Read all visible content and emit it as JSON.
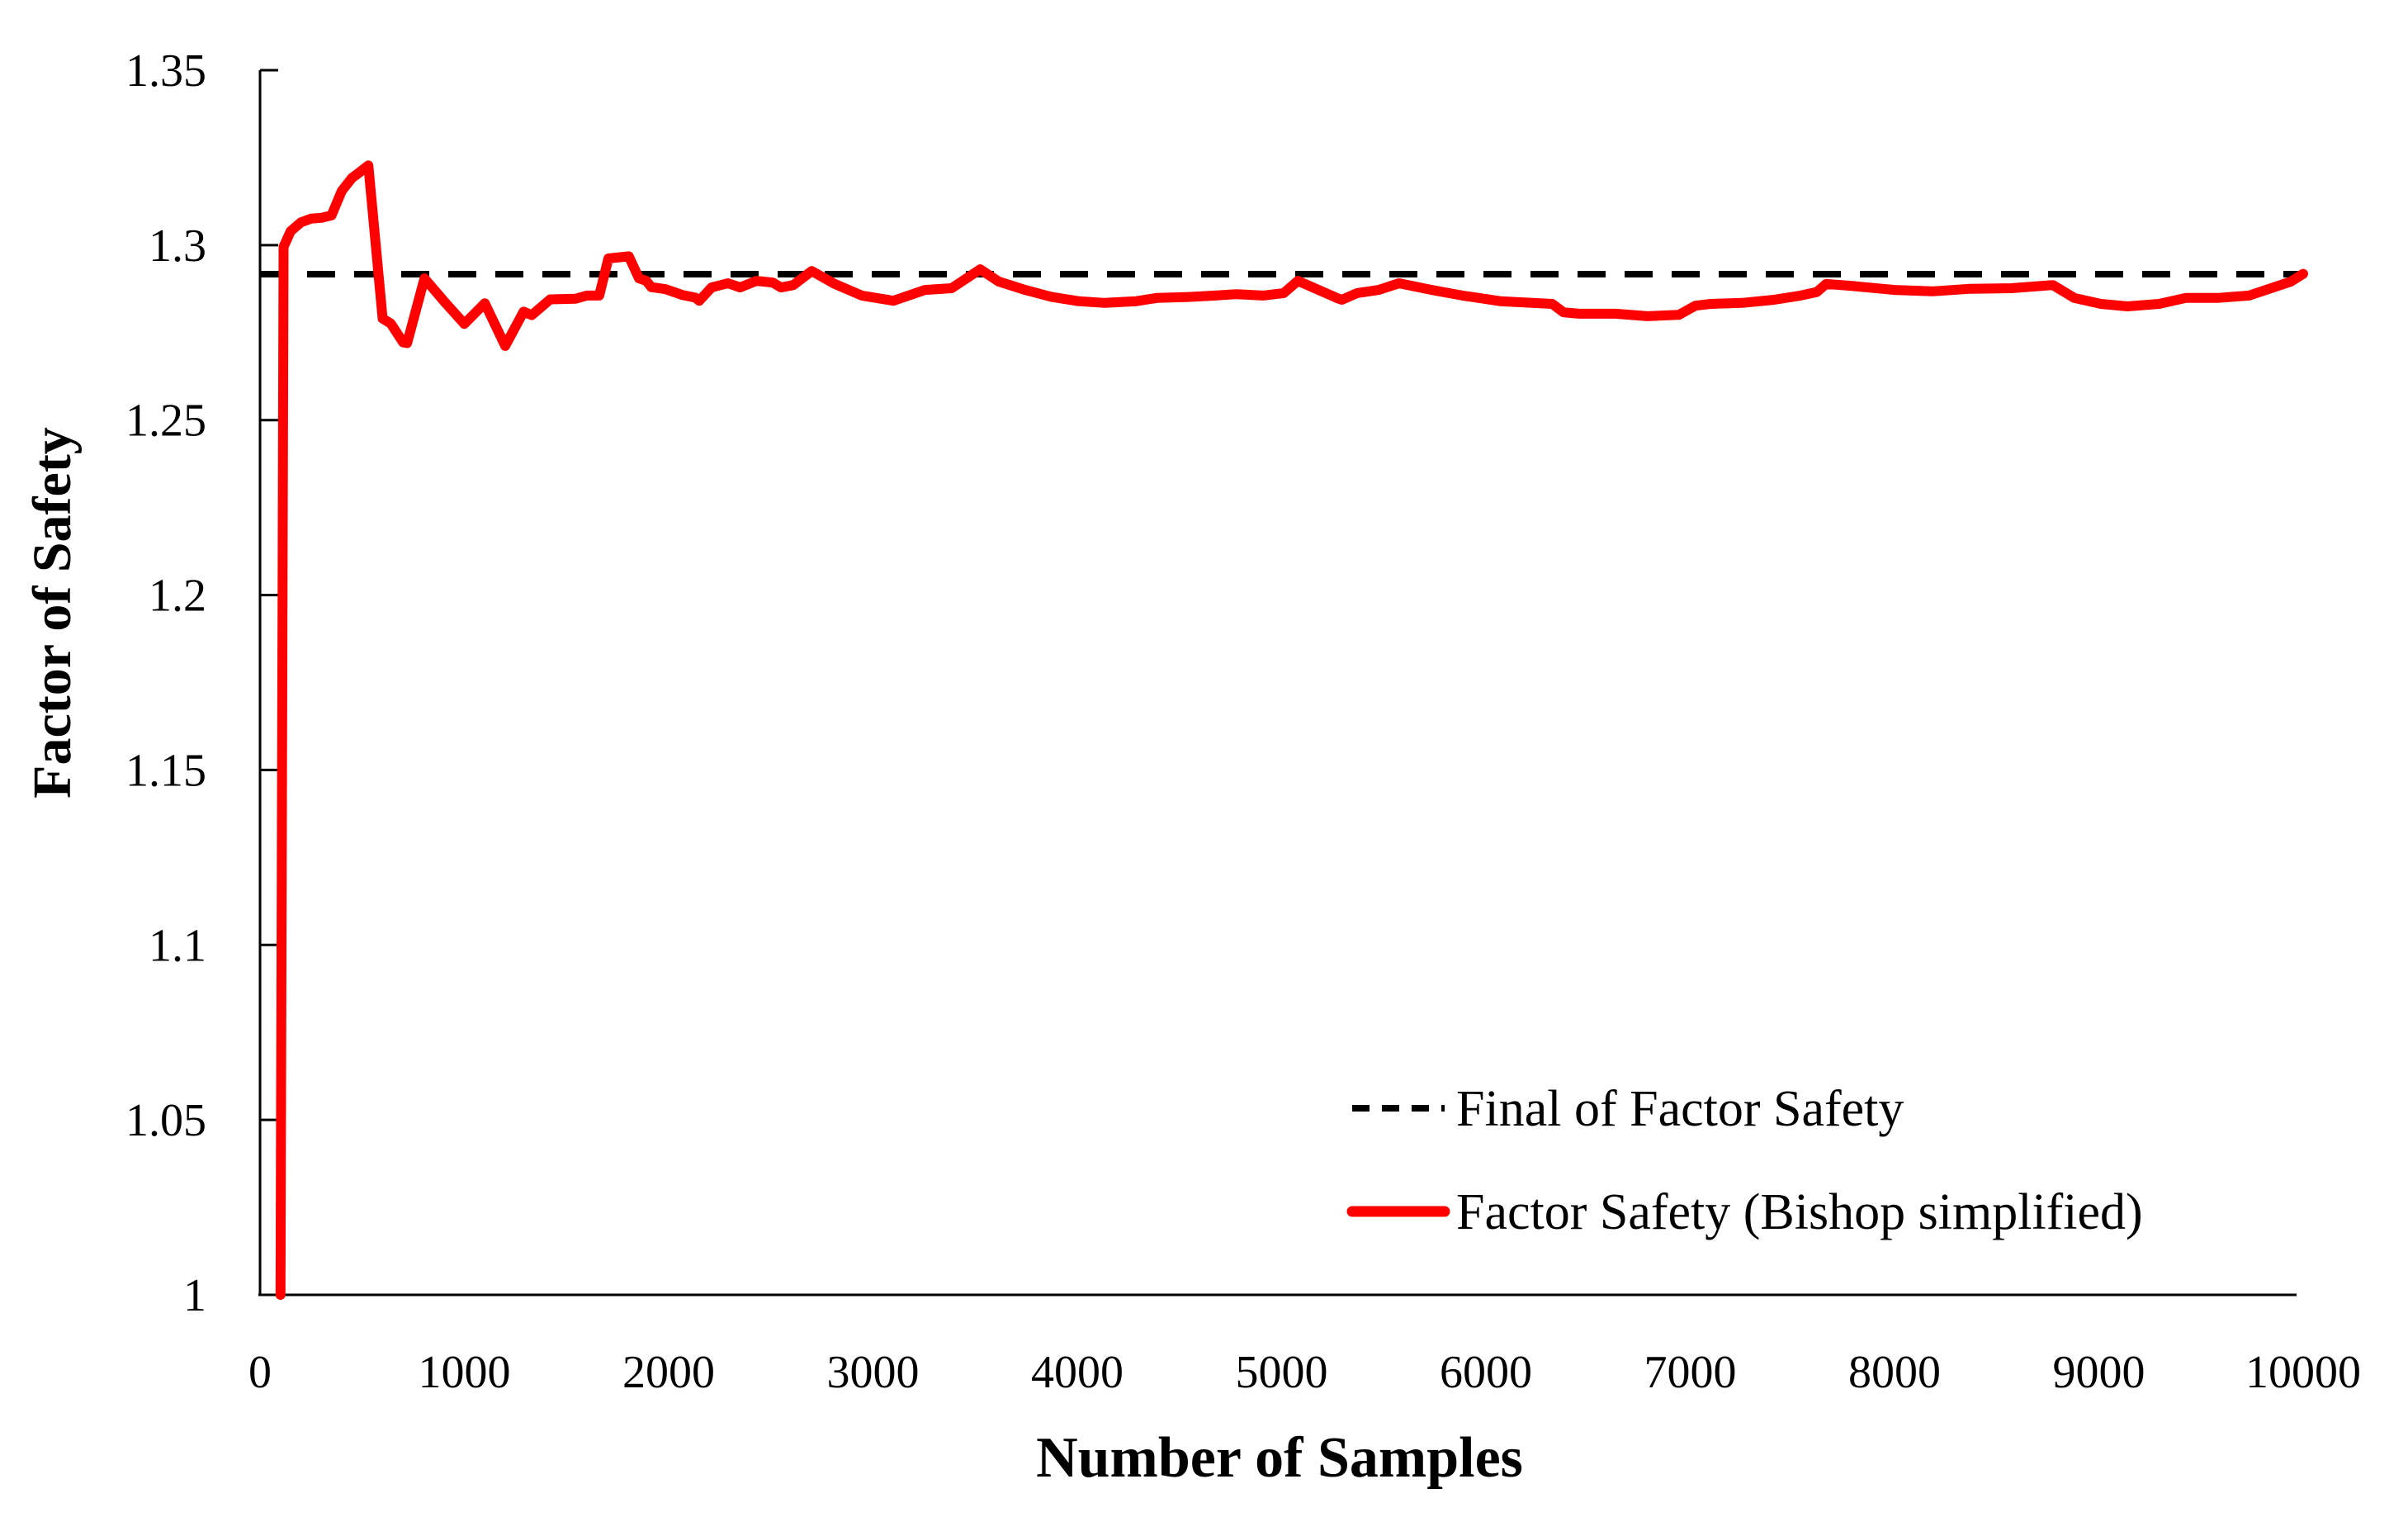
{
  "figure": {
    "background": "#ffffff",
    "plot_border": "none"
  },
  "colors": {
    "axis": "#000000",
    "final_line": "#000000",
    "series_line": "#ff0000",
    "text": "#000000"
  },
  "chart_data": {
    "type": "line",
    "title": "",
    "xlabel": "Number of Samples",
    "ylabel": "Factor of Safety",
    "xlim": [
      0,
      10000
    ],
    "ylim": [
      1,
      1.35
    ],
    "grid": false,
    "legend_position": "inside-bottom-right",
    "x_ticks": [
      0,
      1000,
      2000,
      3000,
      4000,
      5000,
      6000,
      7000,
      8000,
      9000,
      10000
    ],
    "x_tick_labels": [
      "0",
      "1000",
      "2000",
      "3000",
      "4000",
      "5000",
      "6000",
      "7000",
      "8000",
      "9000",
      "10000"
    ],
    "y_ticks": [
      1.35,
      1.3,
      1.25,
      1.2,
      1.15,
      1.1,
      1.05,
      1
    ],
    "y_tick_labels": [
      "1.35",
      "1.3",
      "1.25",
      "1.2",
      "1.15",
      "1.1",
      "1.05",
      "1"
    ],
    "series": [
      {
        "name": "Final of Factor Safety",
        "type": "hline",
        "style": "dashed",
        "color": "#000000",
        "value": 1.2917
      },
      {
        "name": "Factor Safety (Bishop simplified)",
        "type": "line",
        "style": "solid",
        "color": "#ff0000",
        "points": [
          [
            100,
            1.0
          ],
          [
            115,
            1.2995
          ],
          [
            150,
            1.304
          ],
          [
            200,
            1.3065
          ],
          [
            250,
            1.3076
          ],
          [
            300,
            1.3078
          ],
          [
            350,
            1.3085
          ],
          [
            400,
            1.3155
          ],
          [
            450,
            1.3192
          ],
          [
            480,
            1.3205
          ],
          [
            530,
            1.3228
          ],
          [
            600,
            1.279
          ],
          [
            640,
            1.2776
          ],
          [
            700,
            1.2722
          ],
          [
            720,
            1.272
          ],
          [
            805,
            1.2905
          ],
          [
            900,
            1.284
          ],
          [
            1000,
            1.2775
          ],
          [
            1100,
            1.2834
          ],
          [
            1200,
            1.2712
          ],
          [
            1290,
            1.281
          ],
          [
            1330,
            1.28
          ],
          [
            1420,
            1.2845
          ],
          [
            1545,
            1.2847
          ],
          [
            1600,
            1.2856
          ],
          [
            1660,
            1.2856
          ],
          [
            1705,
            1.2962
          ],
          [
            1805,
            1.2968
          ],
          [
            1855,
            1.2905
          ],
          [
            1890,
            1.2898
          ],
          [
            1915,
            1.288
          ],
          [
            1985,
            1.2874
          ],
          [
            2070,
            1.2857
          ],
          [
            2130,
            1.285
          ],
          [
            2150,
            1.2841
          ],
          [
            2210,
            1.2879
          ],
          [
            2290,
            1.2891
          ],
          [
            2350,
            1.2879
          ],
          [
            2430,
            1.2898
          ],
          [
            2510,
            1.2893
          ],
          [
            2550,
            1.2879
          ],
          [
            2610,
            1.2886
          ],
          [
            2700,
            1.2926
          ],
          [
            2810,
            1.289
          ],
          [
            2945,
            1.2856
          ],
          [
            3100,
            1.2841
          ],
          [
            3255,
            1.2872
          ],
          [
            3385,
            1.2877
          ],
          [
            3525,
            1.2931
          ],
          [
            3615,
            1.2896
          ],
          [
            3745,
            1.2872
          ],
          [
            3875,
            1.2852
          ],
          [
            4005,
            1.284
          ],
          [
            4135,
            1.2835
          ],
          [
            4290,
            1.284
          ],
          [
            4390,
            1.2849
          ],
          [
            4545,
            1.2852
          ],
          [
            4675,
            1.2856
          ],
          [
            4780,
            1.286
          ],
          [
            4910,
            1.2856
          ],
          [
            5010,
            1.2863
          ],
          [
            5080,
            1.2898
          ],
          [
            5270,
            1.2849
          ],
          [
            5295,
            1.2844
          ],
          [
            5370,
            1.2863
          ],
          [
            5475,
            1.2872
          ],
          [
            5575,
            1.2891
          ],
          [
            5735,
            1.2872
          ],
          [
            5885,
            1.2856
          ],
          [
            6070,
            1.284
          ],
          [
            6325,
            1.2832
          ],
          [
            6380,
            1.2808
          ],
          [
            6455,
            1.2804
          ],
          [
            6635,
            1.2804
          ],
          [
            6790,
            1.2797
          ],
          [
            6945,
            1.2801
          ],
          [
            7025,
            1.2827
          ],
          [
            7100,
            1.2832
          ],
          [
            7255,
            1.2835
          ],
          [
            7410,
            1.2844
          ],
          [
            7540,
            1.2856
          ],
          [
            7620,
            1.2866
          ],
          [
            7665,
            1.2889
          ],
          [
            7780,
            1.2884
          ],
          [
            8000,
            1.2872
          ],
          [
            8185,
            1.2868
          ],
          [
            8365,
            1.2875
          ],
          [
            8570,
            1.2877
          ],
          [
            8775,
            1.2886
          ],
          [
            8880,
            1.2849
          ],
          [
            9010,
            1.2832
          ],
          [
            9140,
            1.2825
          ],
          [
            9295,
            1.2832
          ],
          [
            9425,
            1.2849
          ],
          [
            9580,
            1.2849
          ],
          [
            9735,
            1.2856
          ],
          [
            9940,
            1.2896
          ],
          [
            10000,
            1.2918
          ]
        ]
      }
    ]
  },
  "legend": {
    "items": [
      {
        "label": "Final of Factor Safety",
        "marker": "dashed-line-swatch",
        "color": "#000000"
      },
      {
        "label": "Factor Safety (Bishop simplified)",
        "marker": "solid-line-swatch",
        "color": "#ff0000"
      }
    ]
  }
}
